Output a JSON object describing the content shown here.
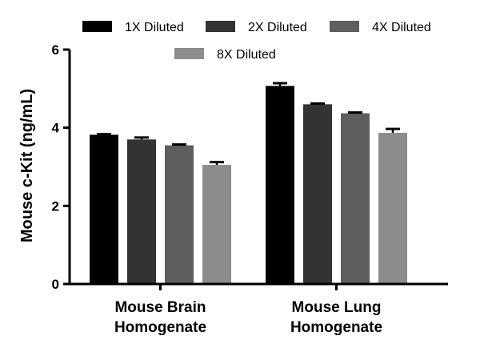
{
  "chart_data": {
    "type": "bar",
    "title": "",
    "xlabel": "",
    "ylabel": "Mouse c-Kit (ng/mL)",
    "ylim": [
      0,
      6
    ],
    "yticks": [
      0,
      2,
      4,
      6
    ],
    "categories": [
      [
        "Mouse Brain",
        "Homogenate"
      ],
      [
        "Mouse Lung",
        "Homogenate"
      ]
    ],
    "series": [
      {
        "name": "1X Diluted",
        "color": "#000000",
        "values": [
          3.82,
          5.07
        ],
        "errors": [
          0.02,
          0.07
        ]
      },
      {
        "name": "2X Diluted",
        "color": "#333333",
        "values": [
          3.7,
          4.6
        ],
        "errors": [
          0.05,
          0.02
        ]
      },
      {
        "name": "4X Diluted",
        "color": "#5e5e5e",
        "values": [
          3.55,
          4.37
        ],
        "errors": [
          0.02,
          0.02
        ]
      },
      {
        "name": "8X Diluted",
        "color": "#8c8c8c",
        "values": [
          3.05,
          3.87
        ],
        "errors": [
          0.07,
          0.1
        ]
      }
    ],
    "grid": false,
    "legend_position": "top"
  }
}
